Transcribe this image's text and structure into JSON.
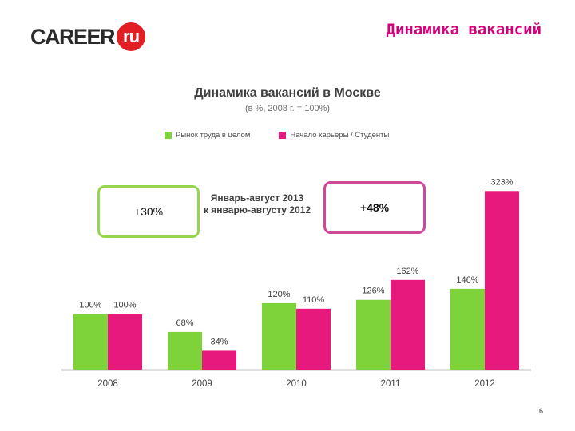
{
  "header": {
    "logo_text": "CAREER",
    "logo_badge": "ru",
    "slide_title": "Динамика вакансий"
  },
  "callouts": {
    "market_change": "+30%",
    "career_change": "+48%",
    "period_line1": "Январь-август 2013",
    "period_line2": "к январю-августу 2012"
  },
  "page_number": "6",
  "colors": {
    "market": "#7ed33a",
    "students": "#e8197d",
    "brand_red": "#e31e24",
    "title_pink": "#d6007a"
  },
  "chart_data": {
    "type": "bar",
    "title": "Динамика вакансий в Москве",
    "subtitle": "(в %, 2008 г. = 100%)",
    "categories": [
      "2008",
      "2009",
      "2010",
      "2011",
      "2012"
    ],
    "series": [
      {
        "name": "Рынок труда в целом",
        "values": [
          100,
          68,
          120,
          126,
          146
        ],
        "labels": [
          "100%",
          "68%",
          "120%",
          "126%",
          "146%"
        ]
      },
      {
        "name": "Начало карьеры / Студенты",
        "values": [
          100,
          34,
          110,
          162,
          323
        ],
        "labels": [
          "100%",
          "34%",
          "110%",
          "162%",
          "323%"
        ]
      }
    ],
    "ylim": [
      0,
      340
    ],
    "legend_position": "top",
    "grid": false
  }
}
